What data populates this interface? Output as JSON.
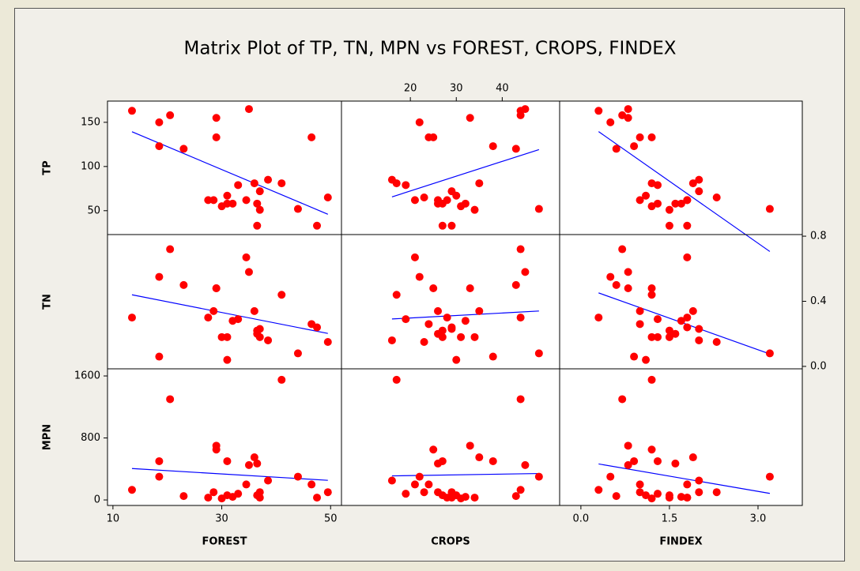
{
  "chart_data": {
    "type": "matrix",
    "title": "Matrix Plot of TP, TN, MPN vs FOREST, CROPS, FINDEX",
    "point_color": "#ff0000",
    "line_color": "#0000ff",
    "x_variables": [
      {
        "name": "FOREST",
        "tick_side": "bottom",
        "xlim": [
          9,
          52
        ],
        "xticks": [
          10,
          30,
          50
        ],
        "values": [
          13.5,
          18.5,
          18.5,
          20.5,
          23,
          27.5,
          28.5,
          29,
          29,
          30,
          31,
          31,
          32,
          33,
          34.5,
          35,
          36,
          36.5,
          36.5,
          37,
          37,
          38.5,
          41,
          44,
          46.5,
          47.5,
          49.5
        ]
      },
      {
        "name": "CROPS",
        "tick_side": "top",
        "xlim": [
          5,
          52.5
        ],
        "xticks": [
          20,
          30,
          40
        ],
        "values": [
          44,
          22,
          38,
          44,
          43,
          28,
          26,
          33,
          25,
          31,
          27,
          30,
          32,
          19,
          21,
          45,
          35,
          26,
          27,
          29,
          34,
          16,
          17,
          48,
          24,
          29,
          23
        ]
      },
      {
        "name": "FINDEX",
        "tick_side": "bottom",
        "xlim": [
          -0.36,
          3.75
        ],
        "xticks": [
          {
            "value": 0,
            "label": "0.0"
          },
          1.5,
          {
            "value": 3,
            "label": "3.0"
          }
        ],
        "values": [
          0.3,
          0.5,
          0.9,
          0.7,
          0.6,
          1.8,
          1.0,
          0.8,
          1.2,
          1.2,
          1.3,
          1.1,
          1.7,
          1.3,
          1.8,
          0.8,
          1.9,
          1.6,
          1.5,
          2.0,
          1.5,
          2.0,
          1.2,
          3.2,
          1.0,
          1.8,
          2.3
        ]
      }
    ],
    "y_variables": [
      {
        "name": "TP",
        "tick_side": "left",
        "ylim": [
          23,
          174
        ],
        "yticks": [
          50,
          100,
          150
        ],
        "values": [
          163,
          150,
          123,
          158,
          120,
          62,
          62,
          155,
          133,
          55,
          58,
          67,
          58,
          79,
          62,
          165,
          81,
          58,
          33,
          72,
          51,
          85,
          81,
          52,
          133,
          33,
          65
        ]
      },
      {
        "name": "TN",
        "tick_side": "right",
        "ylim": [
          -0.015,
          0.81
        ],
        "yticks": [
          {
            "value": 0,
            "label": "0.0"
          },
          0.4,
          0.8
        ],
        "values": [
          0.3,
          0.55,
          0.06,
          0.72,
          0.5,
          0.3,
          0.34,
          0.48,
          0.48,
          0.18,
          0.18,
          0.04,
          0.28,
          0.29,
          0.67,
          0.58,
          0.34,
          0.2,
          0.22,
          0.23,
          0.18,
          0.16,
          0.44,
          0.08,
          0.26,
          0.24,
          0.15
        ]
      },
      {
        "name": "MPN",
        "tick_side": "left",
        "ylim": [
          -71,
          1692
        ],
        "yticks": [
          0,
          800,
          1600
        ],
        "values": [
          130,
          300,
          500,
          1300,
          50,
          30,
          100,
          700,
          650,
          20,
          500,
          60,
          40,
          80,
          200,
          450,
          550,
          470,
          60,
          100,
          30,
          250,
          1550,
          300,
          200,
          30,
          100
        ]
      }
    ]
  }
}
